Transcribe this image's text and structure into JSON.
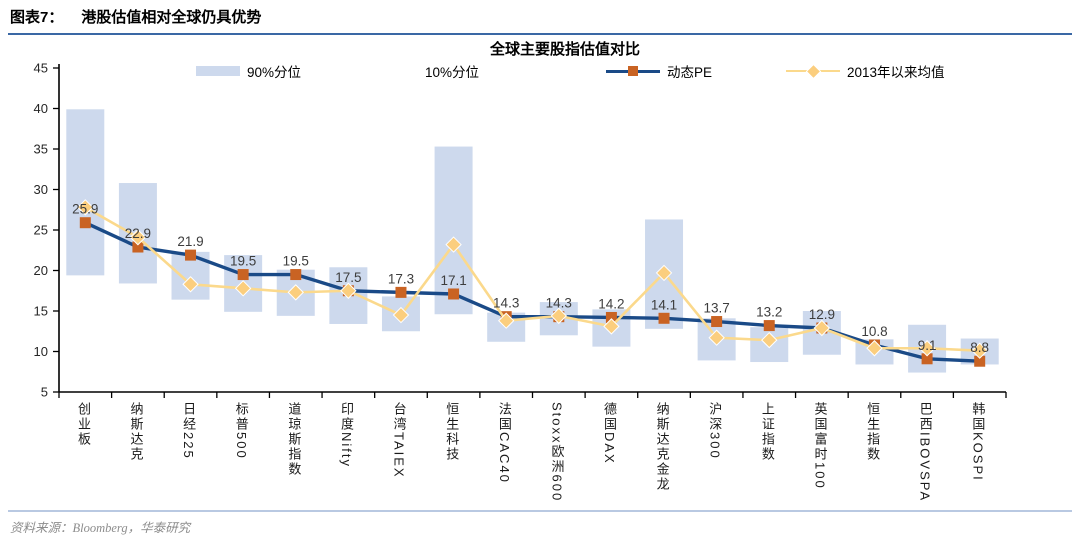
{
  "header": {
    "label": "图表7：",
    "title": "港股估值相对全球仍具优势"
  },
  "chart_data": {
    "type": "combo (floating range bars + two marker lines)",
    "title": "全球主要股指估值对比",
    "categories": [
      "创业板",
      "纳斯达克",
      "日经225",
      "标普500",
      "道琼斯指数",
      "印度Nifty",
      "台湾TAIEX",
      "恒生科技",
      "法国CAC40",
      "Stoxx欧洲600",
      "德国DAX",
      "纳斯达克金龙",
      "沪深300",
      "上证指数",
      "英国富时100",
      "恒生指数",
      "巴西IBOVSPA",
      "韩国KOSPI"
    ],
    "series": [
      {
        "name": "90%分位-10%分位区间",
        "type": "range_bar",
        "p90": [
          39.9,
          30.8,
          22.3,
          21.9,
          20.1,
          20.4,
          16.8,
          35.3,
          14.8,
          16.1,
          15.2,
          26.3,
          14.1,
          13.0,
          15.0,
          11.5,
          13.3,
          11.6
        ],
        "p10": [
          19.4,
          18.4,
          16.4,
          14.9,
          14.4,
          13.4,
          12.5,
          14.6,
          11.2,
          12.0,
          10.6,
          12.8,
          8.9,
          8.7,
          9.6,
          8.4,
          7.4,
          8.4
        ]
      },
      {
        "name": "动态PE",
        "type": "line",
        "marker": "square",
        "data_labels": true,
        "values": [
          25.9,
          22.9,
          21.9,
          19.5,
          19.5,
          17.5,
          17.3,
          17.1,
          14.3,
          14.3,
          14.2,
          14.1,
          13.7,
          13.2,
          12.9,
          10.8,
          9.1,
          8.8
        ]
      },
      {
        "name": "2013年以来均值",
        "type": "line",
        "marker": "diamond",
        "values": [
          27.8,
          24.1,
          18.3,
          17.8,
          17.3,
          17.5,
          14.5,
          23.2,
          13.8,
          14.4,
          13.1,
          19.7,
          11.7,
          11.4,
          12.9,
          10.4,
          10.4,
          10.1
        ]
      }
    ],
    "legend": {
      "position": "top",
      "items": [
        {
          "label": "90%分位",
          "swatch": "bar-blue"
        },
        {
          "label": "10%分位",
          "swatch": "bar-white"
        },
        {
          "label": "动态PE",
          "swatch": "line-square"
        },
        {
          "label": "2013年以来均值",
          "swatch": "line-diamond"
        }
      ]
    },
    "ylim": [
      5,
      45
    ],
    "yticks": [
      5,
      10,
      15,
      20,
      25,
      30,
      35,
      40,
      45
    ],
    "grid": false
  },
  "footer": {
    "source": "资料来源：Bloomberg，华泰研究"
  },
  "colors": {
    "range_bar_fill": "#cdd9ed",
    "pe_line": "#1a4a87",
    "pe_marker": "#c96323",
    "mean_line": "#fbd98c",
    "mean_marker": "#fbce7e",
    "header_rule": "#3a68a5",
    "footer_rule": "#b9c9e2",
    "source_text": "#8c8c8c",
    "axis": "#000000",
    "data_label": "#3d3d3d"
  }
}
